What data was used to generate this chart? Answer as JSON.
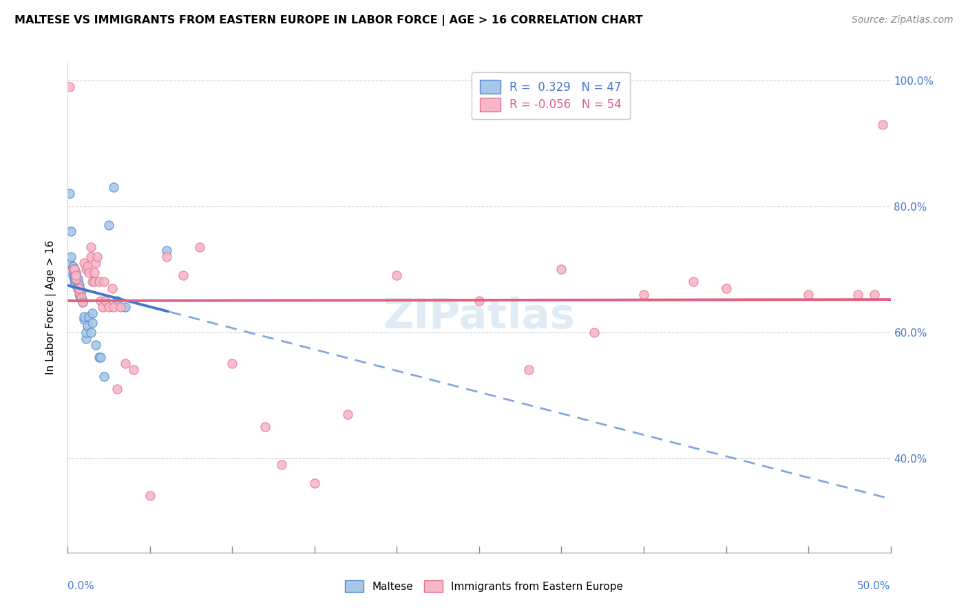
{
  "title": "MALTESE VS IMMIGRANTS FROM EASTERN EUROPE IN LABOR FORCE | AGE > 16 CORRELATION CHART",
  "source": "Source: ZipAtlas.com",
  "ylabel": "In Labor Force | Age > 16",
  "legend_label1": "Maltese",
  "legend_label2": "Immigrants from Eastern Europe",
  "r1": 0.329,
  "n1": 47,
  "r2": -0.056,
  "n2": 54,
  "color_blue_fill": "#a8c8e8",
  "color_pink_fill": "#f5b8c8",
  "color_blue_edge": "#5588cc",
  "color_pink_edge": "#e87090",
  "color_blue_line": "#4477cc",
  "color_pink_line": "#e06080",
  "color_blue_text": "#4477cc",
  "color_pink_text": "#e06080",
  "watermark": "ZIPatlas",
  "blue_dots_x": [
    0.001,
    0.001,
    0.002,
    0.002,
    0.003,
    0.003,
    0.003,
    0.003,
    0.004,
    0.004,
    0.004,
    0.004,
    0.005,
    0.005,
    0.005,
    0.005,
    0.005,
    0.006,
    0.006,
    0.006,
    0.006,
    0.007,
    0.007,
    0.007,
    0.007,
    0.008,
    0.008,
    0.009,
    0.009,
    0.01,
    0.01,
    0.011,
    0.011,
    0.012,
    0.013,
    0.014,
    0.015,
    0.015,
    0.017,
    0.019,
    0.02,
    0.022,
    0.025,
    0.028,
    0.03,
    0.035,
    0.06
  ],
  "blue_dots_y": [
    0.82,
    0.71,
    0.76,
    0.72,
    0.7,
    0.69,
    0.695,
    0.705,
    0.685,
    0.69,
    0.68,
    0.7,
    0.68,
    0.675,
    0.685,
    0.69,
    0.695,
    0.67,
    0.675,
    0.68,
    0.685,
    0.665,
    0.67,
    0.675,
    0.66,
    0.655,
    0.665,
    0.648,
    0.65,
    0.62,
    0.625,
    0.59,
    0.6,
    0.61,
    0.625,
    0.6,
    0.615,
    0.63,
    0.58,
    0.56,
    0.56,
    0.53,
    0.77,
    0.83,
    0.65,
    0.64,
    0.73
  ],
  "pink_dots_x": [
    0.001,
    0.003,
    0.004,
    0.005,
    0.005,
    0.006,
    0.007,
    0.007,
    0.008,
    0.009,
    0.01,
    0.011,
    0.012,
    0.013,
    0.014,
    0.014,
    0.015,
    0.016,
    0.016,
    0.017,
    0.018,
    0.019,
    0.02,
    0.021,
    0.022,
    0.023,
    0.025,
    0.027,
    0.028,
    0.03,
    0.032,
    0.035,
    0.04,
    0.05,
    0.06,
    0.07,
    0.08,
    0.1,
    0.12,
    0.15,
    0.2,
    0.25,
    0.3,
    0.35,
    0.38,
    0.4,
    0.45,
    0.48,
    0.49,
    0.495,
    0.13,
    0.17,
    0.28,
    0.32
  ],
  "pink_dots_y": [
    0.99,
    0.7,
    0.7,
    0.685,
    0.69,
    0.67,
    0.665,
    0.67,
    0.655,
    0.648,
    0.71,
    0.7,
    0.705,
    0.695,
    0.72,
    0.735,
    0.68,
    0.695,
    0.68,
    0.71,
    0.72,
    0.68,
    0.65,
    0.64,
    0.68,
    0.65,
    0.64,
    0.67,
    0.64,
    0.51,
    0.64,
    0.55,
    0.54,
    0.34,
    0.72,
    0.69,
    0.735,
    0.55,
    0.45,
    0.36,
    0.69,
    0.65,
    0.7,
    0.66,
    0.68,
    0.67,
    0.66,
    0.66,
    0.66,
    0.93,
    0.39,
    0.47,
    0.54,
    0.6
  ],
  "xmin": 0.0,
  "xmax": 0.5,
  "ymin": 0.25,
  "ymax": 1.03,
  "y_ticks": [
    0.4,
    0.6,
    0.8,
    1.0
  ],
  "y_tick_labels": [
    "40.0%",
    "60.0%",
    "80.0%",
    "100.0%"
  ],
  "grid_color": "#cccccc",
  "background_color": "#ffffff"
}
